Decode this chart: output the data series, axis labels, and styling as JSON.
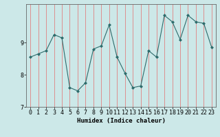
{
  "xlabel": "Humidex (Indice chaleur)",
  "ylabel": "",
  "x_values": [
    0,
    1,
    2,
    3,
    4,
    5,
    6,
    7,
    8,
    9,
    10,
    11,
    12,
    13,
    14,
    15,
    16,
    17,
    18,
    19,
    20,
    21,
    22,
    23
  ],
  "y_values": [
    8.55,
    8.65,
    8.75,
    9.25,
    9.15,
    7.6,
    7.5,
    7.75,
    8.8,
    8.9,
    9.55,
    8.55,
    8.05,
    7.6,
    7.65,
    8.75,
    8.55,
    9.85,
    9.65,
    9.1,
    9.85,
    9.65,
    9.6,
    8.85
  ],
  "ylim": [
    7.0,
    10.2
  ],
  "yticks": [
    7,
    8,
    9
  ],
  "line_color": "#2d6b6b",
  "marker": "D",
  "marker_size": 2,
  "bg_color": "#cce8e8",
  "grid_color": "#e08080",
  "title_fontsize": 7,
  "label_fontsize": 6.5,
  "tick_fontsize": 6
}
